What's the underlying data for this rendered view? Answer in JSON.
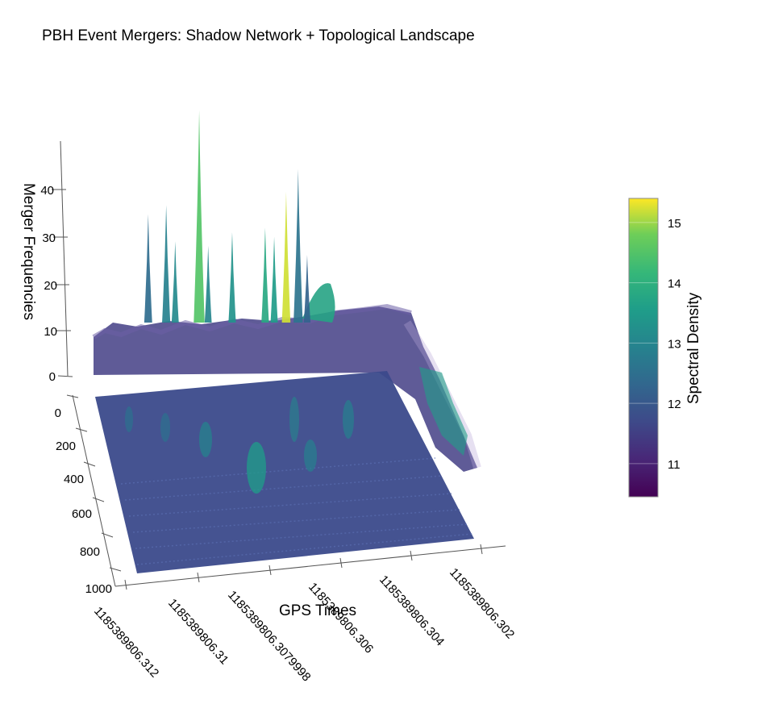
{
  "chart_data": {
    "type": "surface3d",
    "title": "PBH Event Mergers: Shadow Network + Topological Landscape",
    "xlabel": "GPS Times",
    "ylabel": "",
    "zlabel": "Merger Frequencies",
    "x_ticks": [
      "1185389806.312",
      "1185389806.31",
      "1185389806.3079998",
      "1185389806.306",
      "1185389806.304",
      "1185389806.302"
    ],
    "y_ticks": [
      "0",
      "200",
      "400",
      "600",
      "800",
      "1000"
    ],
    "z_ticks": [
      "0",
      "10",
      "20",
      "30",
      "40"
    ],
    "ylim": [
      0,
      1000
    ],
    "zlim": [
      0,
      45
    ],
    "colorbar": {
      "label": "Spectral Density",
      "ticks": [
        "11",
        "12",
        "13",
        "14",
        "15"
      ],
      "range": [
        10.45,
        15.4
      ],
      "colorscale": "viridis"
    },
    "surfaces": [
      {
        "kind": "topological-landscape",
        "z_range": [
          0,
          47
        ]
      },
      {
        "kind": "shadow-network",
        "z_level": 0
      }
    ],
    "peaks": [
      {
        "x": 1185389806.3088,
        "z": 47,
        "density": 14.5
      },
      {
        "x": 1185389806.3055,
        "z": 34,
        "density": 12.6
      },
      {
        "x": 1185389806.3059,
        "z": 29,
        "density": 15.2
      },
      {
        "x": 1185389806.3099,
        "z": 26,
        "density": 12.9
      },
      {
        "x": 1185389806.3105,
        "z": 24,
        "density": 12.4
      },
      {
        "x": 1185389806.3066,
        "z": 21,
        "density": 13.8
      },
      {
        "x": 1185389806.3077,
        "z": 20,
        "density": 13.3
      },
      {
        "x": 1185389806.3096,
        "z": 18,
        "density": 13.1
      },
      {
        "x": 1185389806.3085,
        "z": 17,
        "density": 13.0
      },
      {
        "x": 1185389806.3063,
        "z": 19,
        "density": 13.5
      },
      {
        "x": 1185389806.3052,
        "z": 15,
        "density": 12.2
      }
    ]
  }
}
